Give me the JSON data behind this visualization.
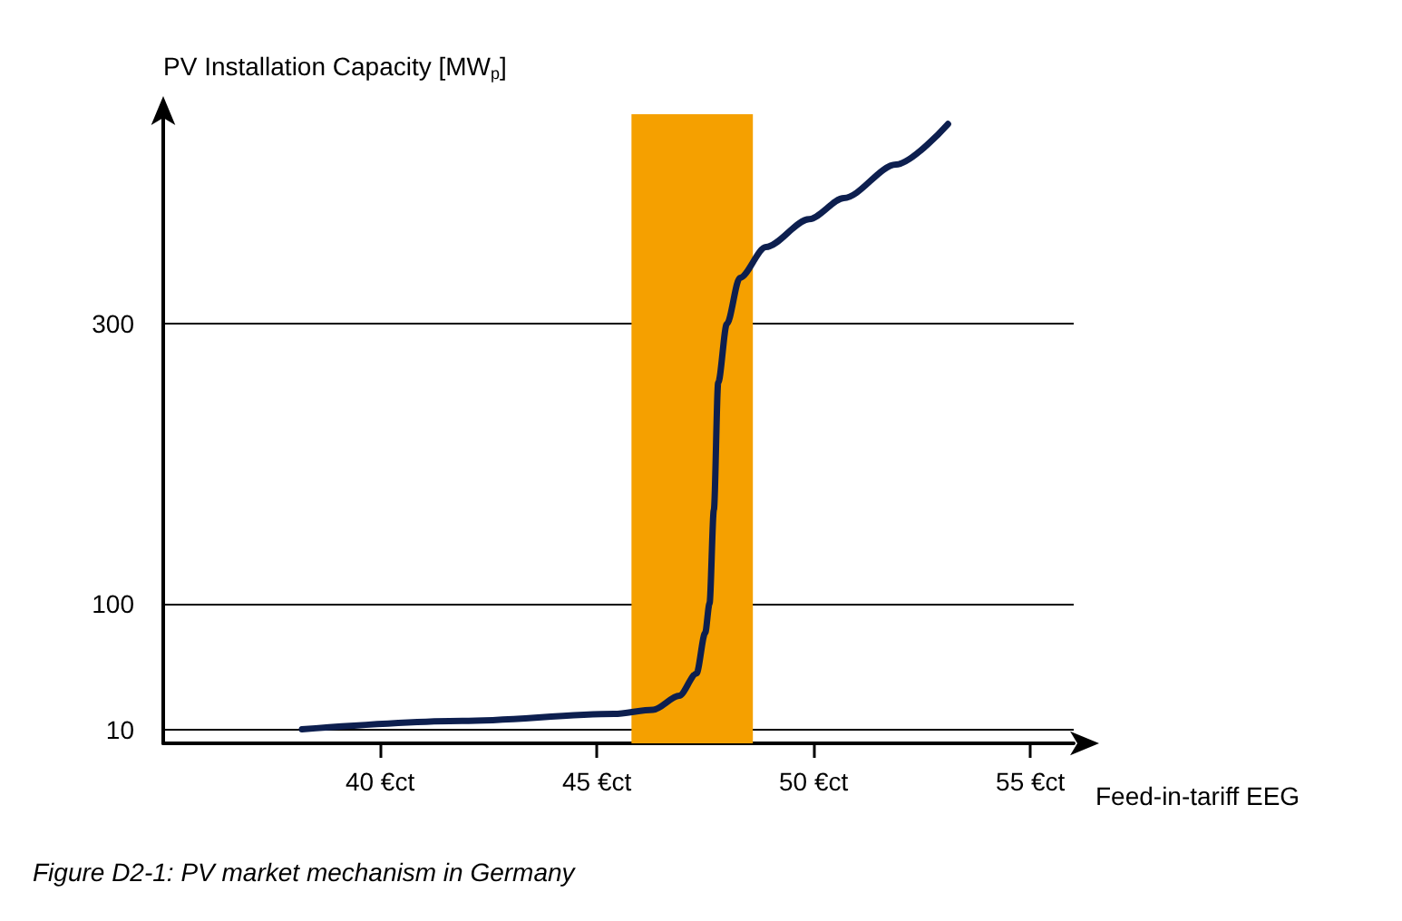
{
  "chart_data": {
    "type": "line",
    "ylabel": "PV Installation Capacity [MW$_{p}$]",
    "xlabel": "Feed-in-tariff EEG",
    "annotations": [
      "Figure D2-1: PV market mechanism in Germany"
    ],
    "x": [
      38.2,
      41.9,
      45.4,
      46.3,
      46.9,
      47.3,
      47.5,
      47.6,
      47.7,
      47.8,
      48.0,
      48.3,
      48.9,
      49.9,
      50.7,
      51.9,
      53.1
    ],
    "series": [
      {
        "color": "#0d1f4f",
        "values": [
          10,
          16,
          21,
          24,
          34,
          50,
          79,
          100,
          167,
          258,
          300,
          333,
          355,
          375,
          390,
          414,
          443
        ]
      }
    ],
    "xlim": [
      35,
      56
    ],
    "xticks": [
      {
        "value": 40,
        "label": "40 €ct"
      },
      {
        "value": 45,
        "label": "45 €ct"
      },
      {
        "value": 50,
        "label": "50 €ct"
      },
      {
        "value": 55,
        "label": "55 €ct"
      }
    ],
    "ylim": [
      0,
      450
    ],
    "yticks": [
      10,
      100,
      300
    ],
    "bands": [
      {
        "axis": "x",
        "from": 45.8,
        "to": 48.6,
        "color": "#f5a000"
      }
    ],
    "grid": "y",
    "marker": "none",
    "line_style": "solid"
  }
}
